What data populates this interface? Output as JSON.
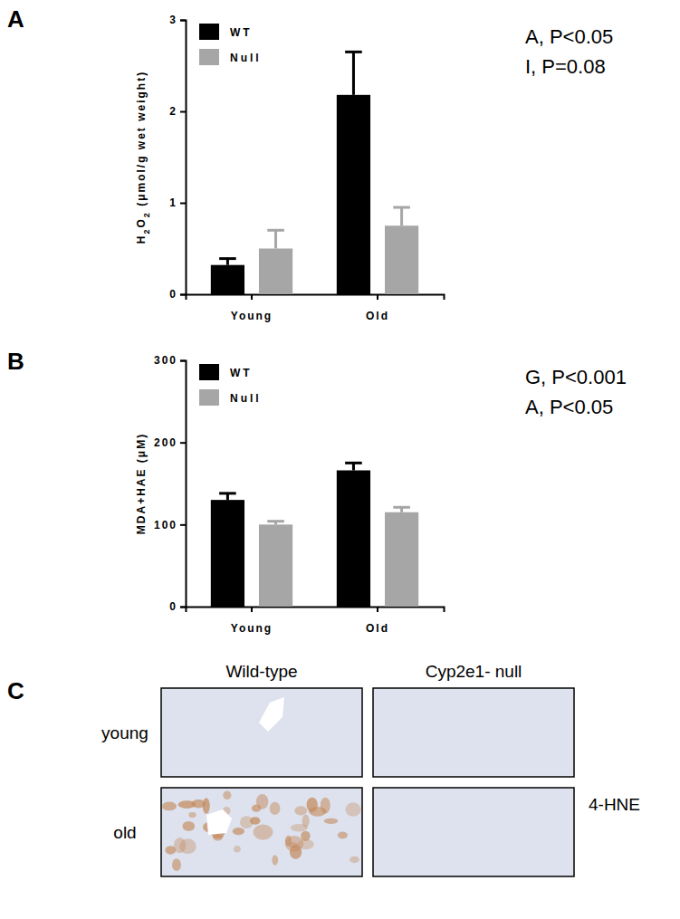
{
  "chart_data": [
    {
      "type": "bar",
      "panel_label": "A",
      "y_label": "H2O2 (μmol/g wet weight)",
      "categories": [
        "Young",
        "Old"
      ],
      "series": [
        {
          "name": "WT",
          "color": "#000000",
          "values": [
            0.32,
            2.18
          ],
          "errors": [
            0.07,
            0.47
          ]
        },
        {
          "name": "Null",
          "color": "#a6a6a6",
          "values": [
            0.5,
            0.75
          ],
          "errors": [
            0.2,
            0.2
          ]
        }
      ],
      "ylim": [
        0,
        3
      ],
      "yticks": [
        0,
        1,
        2,
        3
      ],
      "legend": "upper left",
      "annotations": [
        "A, P<0.05",
        "I, P=0.08"
      ]
    },
    {
      "type": "bar",
      "panel_label": "B",
      "y_label": "MDA+HAE (μM)",
      "categories": [
        "Young",
        "Old"
      ],
      "series": [
        {
          "name": "WT",
          "color": "#000000",
          "values": [
            130,
            166
          ],
          "errors": [
            8,
            9
          ]
        },
        {
          "name": "Null",
          "color": "#a6a6a6",
          "values": [
            100,
            115
          ],
          "errors": [
            4,
            6
          ]
        }
      ],
      "ylim": [
        0,
        300
      ],
      "yticks": [
        0,
        100,
        200,
        300
      ],
      "legend": "upper left",
      "annotations": [
        "G, P<0.001",
        "A, P<0.05"
      ]
    }
  ],
  "image_grid": {
    "panel_label": "C",
    "columns": [
      "Wild-type",
      "Cyp2e1- null"
    ],
    "rows": [
      "young",
      "old"
    ],
    "stain": "4-HNE"
  }
}
